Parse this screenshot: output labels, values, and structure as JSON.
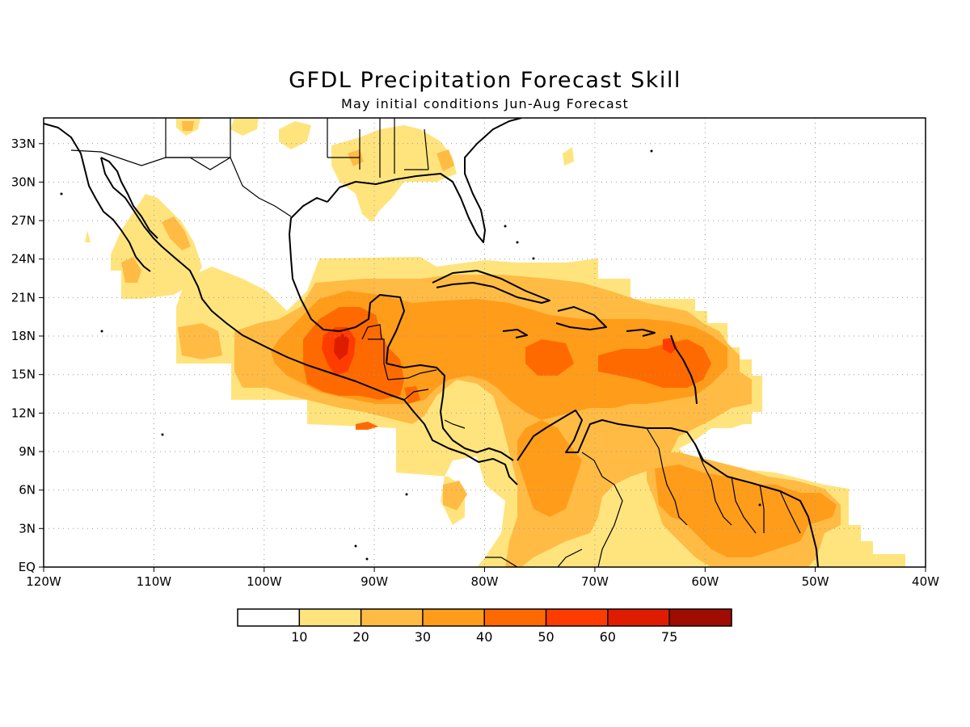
{
  "title": "GFDL Precipitation Forecast Skill",
  "subtitle": "May initial conditions  Jun-Aug Forecast",
  "axes": {
    "lon_labels": [
      "120W",
      "110W",
      "100W",
      "90W",
      "80W",
      "70W",
      "60W",
      "50W",
      "40W"
    ],
    "lat_labels": [
      "EQ",
      "3N",
      "6N",
      "9N",
      "12N",
      "15N",
      "18N",
      "21N",
      "24N",
      "27N",
      "30N",
      "33N"
    ],
    "lon_range": [
      -120,
      -40
    ],
    "lat_range": [
      0,
      35
    ],
    "grid": "dotted"
  },
  "colorbar": {
    "labels": [
      "10",
      "20",
      "30",
      "40",
      "50",
      "60",
      "75"
    ],
    "colors": [
      "#ffffff",
      "#ffe47e",
      "#ffbb44",
      "#ff9c1a",
      "#ff6a00",
      "#ff3c00",
      "#e01c00",
      "#a00c00"
    ]
  }
}
